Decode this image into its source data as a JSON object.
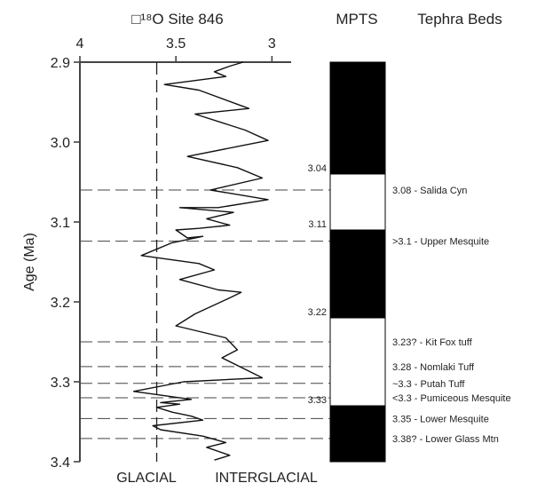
{
  "header": {
    "d18o_title": "□¹⁸O Site 846",
    "mpts_title": "MPTS",
    "tephra_title": "Tephra Beds"
  },
  "bottom_labels": {
    "glacial": "GLACIAL",
    "interglacial": "INTERGLACIAL"
  },
  "chart_data": {
    "type": "line",
    "x_axis": {
      "label": "□¹⁸O Site 846",
      "range": [
        4,
        2.9
      ],
      "reversed": true,
      "ticks": [
        4,
        3.5,
        3
      ],
      "tick_labels": [
        "4",
        "3.5",
        "3"
      ]
    },
    "y_axis": {
      "label": "Age (Ma)",
      "range": [
        2.9,
        3.4
      ],
      "reversed": true,
      "ticks": [
        2.9,
        3.0,
        3.1,
        3.2,
        3.3,
        3.4
      ],
      "tick_labels": [
        "2.9",
        "3.0",
        "3.1",
        "3.2",
        "3.3",
        "3.4"
      ]
    },
    "glacial_threshold": 3.6,
    "series": [
      {
        "points": [
          [
            3.15,
            2.9
          ],
          [
            3.22,
            2.905
          ],
          [
            3.3,
            2.912
          ],
          [
            3.24,
            2.918
          ],
          [
            3.56,
            2.928
          ],
          [
            3.38,
            2.935
          ],
          [
            3.12,
            2.958
          ],
          [
            3.4,
            2.965
          ],
          [
            3.14,
            2.985
          ],
          [
            3.02,
            2.998
          ],
          [
            3.44,
            3.018
          ],
          [
            3.18,
            3.032
          ],
          [
            3.05,
            3.045
          ],
          [
            3.32,
            3.06
          ],
          [
            3.02,
            3.072
          ],
          [
            3.28,
            3.082
          ],
          [
            3.48,
            3.082
          ],
          [
            3.2,
            3.088
          ],
          [
            3.34,
            3.096
          ],
          [
            3.22,
            3.104
          ],
          [
            3.38,
            3.108
          ],
          [
            3.5,
            3.11
          ],
          [
            3.44,
            3.12
          ],
          [
            3.36,
            3.118
          ],
          [
            3.52,
            3.126
          ],
          [
            3.68,
            3.142
          ],
          [
            3.38,
            3.152
          ],
          [
            3.3,
            3.16
          ],
          [
            3.48,
            3.172
          ],
          [
            3.28,
            3.185
          ],
          [
            3.16,
            3.188
          ],
          [
            3.22,
            3.195
          ],
          [
            3.4,
            3.215
          ],
          [
            3.5,
            3.23
          ],
          [
            3.24,
            3.245
          ],
          [
            3.18,
            3.26
          ],
          [
            3.26,
            3.27
          ],
          [
            3.05,
            3.295
          ],
          [
            3.46,
            3.3
          ],
          [
            3.72,
            3.312
          ],
          [
            3.42,
            3.322
          ],
          [
            3.58,
            3.326
          ],
          [
            3.48,
            3.328
          ],
          [
            3.6,
            3.332
          ],
          [
            3.52,
            3.338
          ],
          [
            3.42,
            3.343
          ],
          [
            3.36,
            3.348
          ],
          [
            3.62,
            3.355
          ],
          [
            3.58,
            3.36
          ],
          [
            3.36,
            3.368
          ],
          [
            3.24,
            3.376
          ],
          [
            3.34,
            3.382
          ],
          [
            3.22,
            3.392
          ],
          [
            3.3,
            3.398
          ]
        ]
      }
    ],
    "mpts": {
      "title": "MPTS",
      "blocks": [
        {
          "from": 2.9,
          "to": 3.04,
          "polarity": "normal"
        },
        {
          "from": 3.04,
          "to": 3.11,
          "polarity": "reversed"
        },
        {
          "from": 3.11,
          "to": 3.22,
          "polarity": "normal"
        },
        {
          "from": 3.22,
          "to": 3.33,
          "polarity": "reversed"
        },
        {
          "from": 3.33,
          "to": 3.4,
          "polarity": "normal"
        }
      ],
      "boundary_labels": [
        {
          "age": 3.04,
          "label": "3.04"
        },
        {
          "age": 3.11,
          "label": "3.11"
        },
        {
          "age": 3.22,
          "label": "3.22"
        },
        {
          "age": 3.33,
          "label": "3.33"
        }
      ]
    },
    "tephra_beds": [
      {
        "age": 3.06,
        "label": "3.08 - Salida Cyn"
      },
      {
        "age": 3.124,
        "label": ">3.1 - Upper Mesquite"
      },
      {
        "age": 3.25,
        "label": "3.23? - Kit Fox tuff"
      },
      {
        "age": 3.281,
        "label": "3.28 - Nomlaki Tuff"
      },
      {
        "age": 3.302,
        "label": "~3.3 - Putah Tuff"
      },
      {
        "age": 3.32,
        "label": "<3.3 - Pumiceous Mesquite"
      },
      {
        "age": 3.346,
        "label": "3.35 - Lower Mesquite"
      },
      {
        "age": 3.371,
        "label": "3.38? - Lower Glass Mtn"
      }
    ]
  }
}
